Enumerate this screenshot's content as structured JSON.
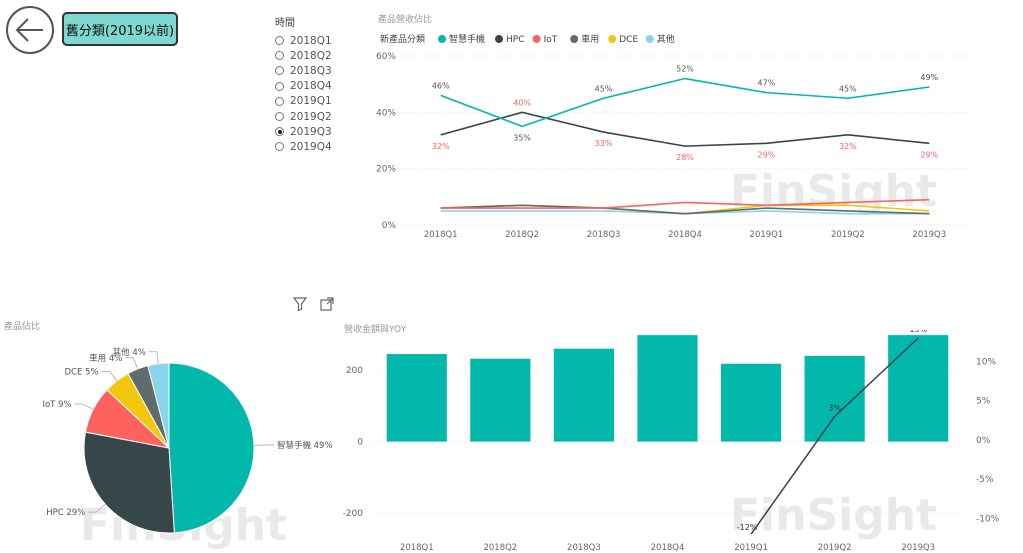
{
  "header": {
    "tab_label": "舊分類(2019以前)"
  },
  "slicer": {
    "title": "時間",
    "items": [
      "2018Q1",
      "2018Q2",
      "2018Q3",
      "2018Q4",
      "2019Q1",
      "2019Q2",
      "2019Q3",
      "2019Q4"
    ],
    "selected": "2019Q3"
  },
  "icons": {
    "back": "back-arrow-icon",
    "filter": "filter-icon",
    "focus": "focus-mode-icon"
  },
  "watermark": "FinSight",
  "chart_data": [
    {
      "type": "line",
      "title": "產品營收佔比",
      "legend_title": "新產品分類",
      "legend_position": "top-left",
      "x": [
        "2018Q1",
        "2018Q2",
        "2018Q3",
        "2018Q4",
        "2019Q1",
        "2019Q2",
        "2019Q3"
      ],
      "ylim": [
        0,
        60
      ],
      "yticks": [
        "0%",
        "20%",
        "40%",
        "60%"
      ],
      "grid": true,
      "series": [
        {
          "name": "智慧手機",
          "color": "#01b8aa",
          "values": [
            46,
            35,
            45,
            52,
            47,
            45,
            49
          ],
          "labels": [
            "46%",
            "35%",
            "45%",
            "52%",
            "47%",
            "45%",
            "49%"
          ]
        },
        {
          "name": "HPC",
          "color": "#374649",
          "values": [
            32,
            40,
            33,
            28,
            29,
            32,
            29
          ],
          "labels": [
            "32%",
            "40%",
            "33%",
            "28%",
            "29%",
            "32%",
            "29%"
          ]
        },
        {
          "name": "IoT",
          "color": "#fd625e",
          "values": [
            6,
            6,
            6,
            8,
            7,
            8,
            9
          ]
        },
        {
          "name": "車用",
          "color": "#5f6b6d",
          "values": [
            6,
            7,
            6,
            4,
            6,
            5,
            4
          ]
        },
        {
          "name": "DCE",
          "color": "#f2c80f",
          "values": [
            6,
            7,
            6,
            4,
            7,
            7,
            5
          ]
        },
        {
          "name": "其他",
          "color": "#8ad4eb",
          "values": [
            5,
            5,
            5,
            4,
            5,
            4,
            4
          ]
        }
      ]
    },
    {
      "type": "pie",
      "title": "產品佔比",
      "slices": [
        {
          "name": "智慧手機",
          "value": 49,
          "label": "智慧手機 49%",
          "color": "#01b8aa"
        },
        {
          "name": "HPC",
          "value": 29,
          "label": "HPC 29%",
          "color": "#374649"
        },
        {
          "name": "IoT",
          "value": 9,
          "label": "IoT 9%",
          "color": "#fd625e"
        },
        {
          "name": "DCE",
          "value": 5,
          "label": "DCE 5%",
          "color": "#f2c80f"
        },
        {
          "name": "車用",
          "value": 4,
          "label": "車用 4%",
          "color": "#5f6b6d"
        },
        {
          "name": "其他",
          "value": 4,
          "label": "其他 4%",
          "color": "#8ad4eb"
        }
      ]
    },
    {
      "type": "bar",
      "title": "營收金額與YOY",
      "categories": [
        "2018Q1",
        "2018Q2",
        "2018Q3",
        "2018Q4",
        "2019Q1",
        "2019Q2",
        "2019Q3"
      ],
      "values": [
        245,
        232,
        260,
        298,
        218,
        240,
        298
      ],
      "bar_color": "#01b8aa",
      "ylim": [
        -270,
        290
      ],
      "yticks": [
        -200,
        0,
        200
      ],
      "line_series": {
        "color": "#374649",
        "x": [
          "2019Q1",
          "2019Q2",
          "2019Q3"
        ],
        "values": [
          -12,
          3,
          13
        ],
        "labels": [
          "-12%",
          "3%",
          "13%"
        ]
      },
      "y2lim": [
        -12.5,
        13
      ],
      "y2ticks": [
        "-10%",
        "-5%",
        "0%",
        "5%",
        "10%"
      ],
      "y2tick_values": [
        -10,
        -5,
        0,
        5,
        10
      ]
    }
  ]
}
